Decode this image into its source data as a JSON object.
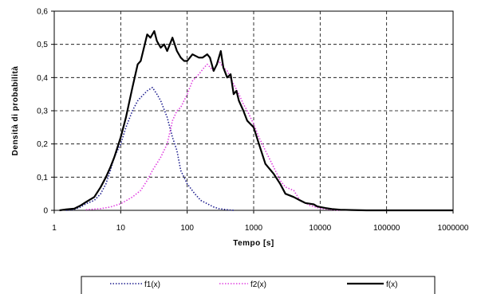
{
  "chart_data": {
    "type": "line",
    "xlabel": "Tempo [s]",
    "ylabel": "Densità di probabilità",
    "x_scale": "log",
    "xlim": [
      1,
      1000000
    ],
    "ylim": [
      0,
      0.6
    ],
    "x_ticks": [
      "1",
      "10",
      "100",
      "1000",
      "10000",
      "100000",
      "1000000"
    ],
    "y_ticks": [
      "0",
      "0,1",
      "0,2",
      "0,3",
      "0,4",
      "0,5",
      "0,6"
    ],
    "grid": "dashed",
    "legend_position": "bottom",
    "series": [
      {
        "name": "f1(x)",
        "color": "#1f1f8f",
        "style": "dotted",
        "x": [
          1.5,
          2,
          2.5,
          3,
          4,
          5,
          6,
          7,
          8,
          10,
          12,
          15,
          18,
          20,
          25,
          30,
          35,
          40,
          50,
          60,
          70,
          80,
          100,
          130,
          160,
          200,
          250,
          300,
          400,
          500
        ],
        "y": [
          0,
          0.003,
          0.01,
          0.02,
          0.03,
          0.05,
          0.08,
          0.12,
          0.16,
          0.2,
          0.25,
          0.3,
          0.33,
          0.34,
          0.36,
          0.37,
          0.35,
          0.33,
          0.28,
          0.22,
          0.18,
          0.12,
          0.08,
          0.05,
          0.03,
          0.02,
          0.01,
          0.005,
          0.002,
          0
        ]
      },
      {
        "name": "f2(x)",
        "color": "#e040e0",
        "style": "dotted",
        "x": [
          3,
          5,
          7,
          10,
          15,
          20,
          25,
          30,
          40,
          50,
          60,
          70,
          80,
          100,
          120,
          150,
          180,
          200,
          250,
          300,
          350,
          400,
          500,
          600,
          700,
          800,
          1000,
          1200,
          1500,
          2000,
          2500,
          3000,
          4000,
          5000,
          7000,
          10000,
          15000,
          20000
        ],
        "y": [
          0.002,
          0.005,
          0.01,
          0.02,
          0.04,
          0.06,
          0.09,
          0.12,
          0.16,
          0.2,
          0.27,
          0.3,
          0.31,
          0.35,
          0.39,
          0.41,
          0.43,
          0.44,
          0.42,
          0.45,
          0.43,
          0.42,
          0.38,
          0.35,
          0.32,
          0.3,
          0.26,
          0.22,
          0.18,
          0.13,
          0.09,
          0.07,
          0.06,
          0.03,
          0.015,
          0.006,
          0.002,
          0
        ]
      },
      {
        "name": "f(x)",
        "color": "#000000",
        "style": "solid",
        "x": [
          1.2,
          1.5,
          2,
          2.5,
          3,
          4,
          5,
          6,
          7,
          8,
          10,
          12,
          15,
          18,
          20,
          25,
          28,
          32,
          35,
          40,
          45,
          50,
          60,
          70,
          80,
          90,
          100,
          120,
          150,
          170,
          200,
          220,
          250,
          280,
          320,
          350,
          400,
          450,
          500,
          550,
          600,
          700,
          800,
          1000,
          1200,
          1500,
          2000,
          2500,
          3000,
          4000,
          5000,
          6000,
          7000,
          8000,
          9000,
          10000,
          12000,
          15000,
          20000,
          30000,
          50000,
          100000,
          1000000
        ],
        "y": [
          0,
          0.003,
          0.005,
          0.015,
          0.025,
          0.04,
          0.07,
          0.1,
          0.13,
          0.16,
          0.22,
          0.28,
          0.37,
          0.44,
          0.45,
          0.53,
          0.52,
          0.54,
          0.51,
          0.49,
          0.5,
          0.48,
          0.52,
          0.48,
          0.46,
          0.45,
          0.45,
          0.47,
          0.46,
          0.46,
          0.47,
          0.46,
          0.42,
          0.44,
          0.48,
          0.43,
          0.4,
          0.41,
          0.35,
          0.36,
          0.33,
          0.3,
          0.27,
          0.25,
          0.2,
          0.14,
          0.11,
          0.08,
          0.05,
          0.04,
          0.03,
          0.022,
          0.02,
          0.018,
          0.012,
          0.01,
          0.007,
          0.004,
          0.002,
          0.001,
          0,
          0,
          0
        ]
      }
    ]
  }
}
